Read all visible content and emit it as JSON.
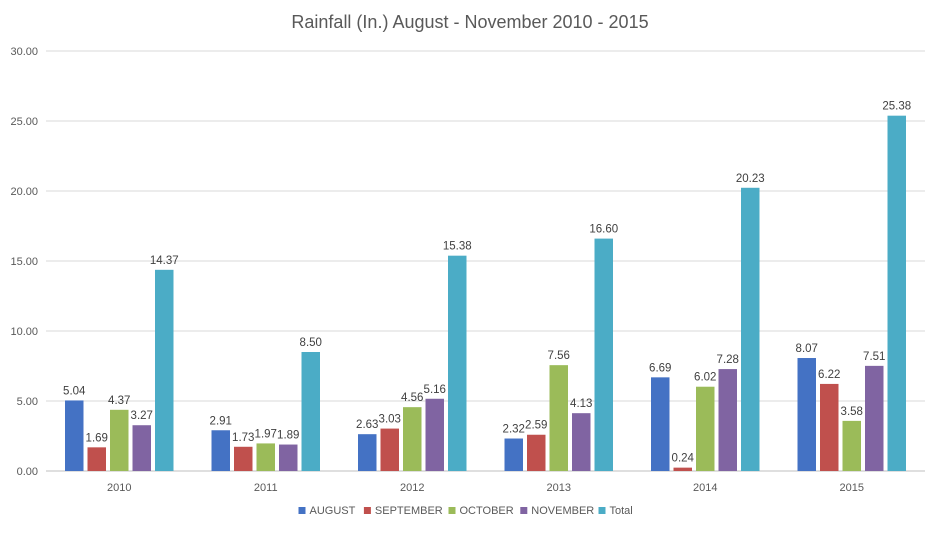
{
  "chart_data": {
    "type": "bar",
    "title": "Rainfall (In.) August - November 2010 - 2015",
    "xlabel": "",
    "ylabel": "",
    "categories": [
      "2010",
      "2011",
      "2012",
      "2013",
      "2014",
      "2015"
    ],
    "ylim": [
      0,
      30
    ],
    "yticks": [
      "0.00",
      "5.00",
      "10.00",
      "15.00",
      "20.00",
      "25.00",
      "30.00"
    ],
    "grid": true,
    "legend_position": "bottom",
    "series": [
      {
        "name": "AUGUST",
        "color": "#4472c4",
        "values": [
          5.04,
          2.91,
          2.63,
          2.32,
          6.69,
          8.07
        ],
        "labels": [
          "5.04",
          "2.91",
          "2.63",
          "2.32",
          "6.69",
          "8.07"
        ]
      },
      {
        "name": "SEPTEMBER",
        "color": "#c0504d",
        "values": [
          1.69,
          1.73,
          3.03,
          2.59,
          0.24,
          6.22
        ],
        "labels": [
          "1.69",
          "1.73",
          "3.03",
          "2.59",
          "0.24",
          "6.22"
        ]
      },
      {
        "name": "OCTOBER",
        "color": "#9bbb59",
        "values": [
          4.37,
          1.97,
          4.56,
          7.56,
          6.02,
          3.58
        ],
        "labels": [
          "4.37",
          "1.97",
          "4.56",
          "7.56",
          "6.02",
          "3.58"
        ]
      },
      {
        "name": "NOVEMBER",
        "color": "#8064a2",
        "values": [
          3.27,
          1.89,
          5.16,
          4.13,
          7.28,
          7.51
        ],
        "labels": [
          "3.27",
          "1.89",
          "5.16",
          "4.13",
          "7.28",
          "7.51"
        ]
      },
      {
        "name": "Total",
        "color": "#4bacc6",
        "values": [
          14.37,
          8.5,
          15.38,
          16.6,
          20.23,
          25.38
        ],
        "labels": [
          "14.37",
          "8.50",
          "15.38",
          "16.60",
          "20.23",
          "25.38"
        ]
      }
    ]
  }
}
